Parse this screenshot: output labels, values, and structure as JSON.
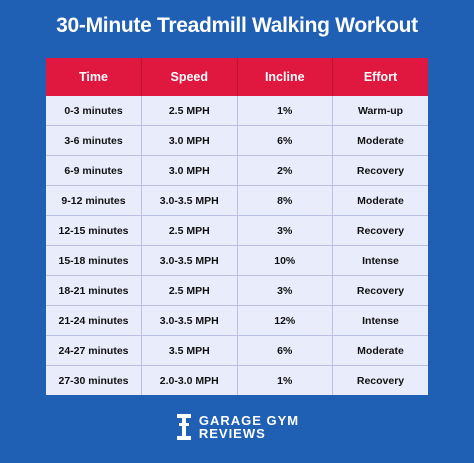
{
  "title": "30-Minute Treadmill Walking Workout",
  "colors": {
    "background": "#1f5fb4",
    "header": "#e0173f",
    "row": "#e9ecfb"
  },
  "table": {
    "headers": [
      "Time",
      "Speed",
      "Incline",
      "Effort"
    ],
    "rows": [
      [
        "0-3 minutes",
        "2.5 MPH",
        "1%",
        "Warm-up"
      ],
      [
        "3-6 minutes",
        "3.0 MPH",
        "6%",
        "Moderate"
      ],
      [
        "6-9 minutes",
        "3.0 MPH",
        "2%",
        "Recovery"
      ],
      [
        "9-12 minutes",
        "3.0-3.5 MPH",
        "8%",
        "Moderate"
      ],
      [
        "12-15 minutes",
        "2.5 MPH",
        "3%",
        "Recovery"
      ],
      [
        "15-18 minutes",
        "3.0-3.5 MPH",
        "10%",
        "Intense"
      ],
      [
        "18-21 minutes",
        "2.5 MPH",
        "3%",
        "Recovery"
      ],
      [
        "21-24 minutes",
        "3.0-3.5 MPH",
        "12%",
        "Intense"
      ],
      [
        "24-27 minutes",
        "3.5 MPH",
        "6%",
        "Moderate"
      ],
      [
        "27-30 minutes",
        "2.0-3.0 MPH",
        "1%",
        "Recovery"
      ]
    ]
  },
  "brand": {
    "line1": "GARAGE GYM",
    "line2": "REVIEWS",
    "icon": "dumbbell-logo-icon"
  }
}
